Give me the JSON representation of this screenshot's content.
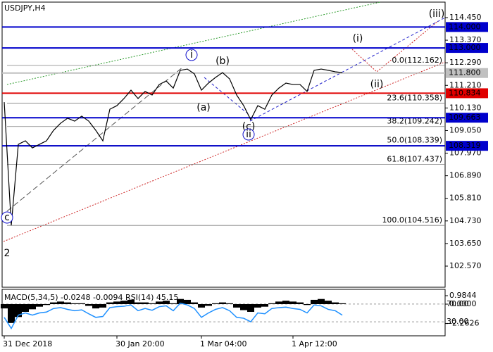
{
  "chart_data": [
    {
      "type": "line",
      "title": "USDJPY,H4",
      "categories": [
        "31 Dec 2018",
        null,
        null,
        null,
        null,
        null,
        null,
        null,
        null,
        null,
        null,
        null,
        null,
        null,
        null,
        null,
        "30 Jan 20:00",
        null,
        null,
        null,
        null,
        null,
        null,
        null,
        null,
        null,
        null,
        null,
        "1 Mar 04:00",
        null,
        null,
        null,
        null,
        null,
        null,
        null,
        null,
        null,
        null,
        null,
        null,
        "1 Apr 12:00",
        null,
        null,
        null,
        null,
        null,
        null,
        null
      ],
      "series": [
        {
          "color": "#000000",
          "values": [
            110.41,
            104.52,
            108.39,
            108.56,
            108.22,
            108.39,
            108.56,
            109.06,
            109.4,
            109.64,
            109.5,
            109.74,
            109.5,
            109.06,
            108.56,
            110.07,
            110.24,
            110.58,
            110.98,
            110.58,
            110.92,
            110.75,
            111.25,
            111.42,
            111.08,
            111.93,
            111.99,
            111.76,
            110.98,
            111.32,
            111.59,
            111.82,
            111.52,
            110.75,
            110.24,
            109.57,
            110.24,
            110.07,
            110.75,
            111.08,
            111.32,
            111.25,
            111.25,
            110.92,
            111.93,
            111.99,
            111.93,
            111.86,
            111.82
          ]
        }
      ],
      "ylim": [
        101.56,
        115.19
      ],
      "yticks": [
        {
          "value": 114.45,
          "label": "114.450"
        },
        {
          "value": 113.37,
          "label": "113.370"
        },
        {
          "value": 112.29,
          "label": "112.290"
        },
        {
          "value": 111.21,
          "label": "111.210"
        },
        {
          "value": 110.13,
          "label": "110.130"
        },
        {
          "value": 109.05,
          "label": "109.050"
        },
        {
          "value": 107.97,
          "label": "107.970"
        },
        {
          "value": 106.89,
          "label": "106.890"
        },
        {
          "value": 105.81,
          "label": "105.810"
        },
        {
          "value": 104.73,
          "label": "104.730"
        },
        {
          "value": 103.65,
          "label": "103.650"
        },
        {
          "value": 102.57,
          "label": "102.570"
        }
      ],
      "levels": [
        {
          "value": 114.0,
          "label": "114.000",
          "color": "#0000cc"
        },
        {
          "value": 113.0,
          "label": "113.000",
          "color": "#0000cc"
        },
        {
          "value": 111.8,
          "label": "111.800",
          "color": "#c0c0c0"
        },
        {
          "value": 110.834,
          "label": "110.834",
          "color": "#e00000"
        },
        {
          "value": 109.663,
          "label": "109.663",
          "color": "#0000cc"
        },
        {
          "value": 108.319,
          "label": "108.319",
          "color": "#0000cc"
        }
      ],
      "fib_levels": [
        {
          "value": 112.162,
          "label": "0.0(112.162)"
        },
        {
          "value": 110.358,
          "label": "23.6(110.358)"
        },
        {
          "value": 109.242,
          "label": "38.2(109.242)"
        },
        {
          "value": 108.339,
          "label": "50.0(108.339)"
        },
        {
          "value": 107.437,
          "label": "61.8(107.437)"
        },
        {
          "value": 104.516,
          "label": "100.0(104.516)"
        }
      ],
      "annotations": [
        {
          "text": "i",
          "color": "#1010cc",
          "circled": true
        },
        {
          "text": "(b)",
          "color": "#e00000"
        },
        {
          "text": "(a)",
          "color": "#e00000"
        },
        {
          "text": "(c)",
          "color": "#e00000"
        },
        {
          "text": "ii",
          "color": "#1010cc",
          "circled": true
        },
        {
          "text": "c",
          "color": "#1010cc",
          "circled": true
        },
        {
          "text": "2",
          "color": "#e00000"
        },
        {
          "text": "(i)",
          "color": "#e00000"
        },
        {
          "text": "(ii)",
          "color": "#e00000"
        },
        {
          "text": "(iii)",
          "color": "#e00000"
        }
      ]
    },
    {
      "type": "bar",
      "title": "MACD(5,34,5) -0.0248 -0.0094 RSI(14) 45.15",
      "series": [
        {
          "color": "#000000",
          "values": [
            -0.5,
            -2.2,
            -1.5,
            -0.9,
            -0.6,
            -0.3,
            -0.1,
            0.2,
            0.3,
            0.2,
            0.1,
            0.1,
            -0.2,
            -0.5,
            -0.4,
            0.2,
            0.3,
            0.4,
            0.5,
            0.2,
            0.2,
            0.1,
            0.3,
            0.4,
            0.1,
            0.6,
            0.5,
            0.2,
            -0.4,
            -0.2,
            0.1,
            0.2,
            0.1,
            -0.4,
            -0.7,
            -0.9,
            -0.4,
            -0.3,
            0.1,
            0.3,
            0.4,
            0.3,
            0.2,
            -0.1,
            0.5,
            0.6,
            0.4,
            0.2,
            0.1
          ]
        },
        {
          "type": "line",
          "axis": "y2",
          "color": "#1e90ff",
          "values": [
            40,
            15,
            45,
            50,
            45,
            50,
            52,
            60,
            62,
            58,
            55,
            57,
            48,
            40,
            42,
            62,
            64,
            65,
            68,
            55,
            60,
            56,
            64,
            66,
            55,
            72,
            68,
            60,
            40,
            50,
            58,
            62,
            55,
            40,
            38,
            30,
            50,
            48,
            60,
            62,
            63,
            60,
            58,
            50,
            68,
            66,
            58,
            55,
            45
          ]
        }
      ],
      "ylim": [
        -3.61,
        1.56
      ],
      "yticks": [
        {
          "value": 0.9844,
          "label": "0.9844"
        },
        {
          "value": 0,
          "label": "0.0000"
        },
        {
          "value": -2.2626,
          "label": "-2.2626"
        }
      ],
      "y2lim": [
        0,
        100
      ],
      "y2ticks": [
        {
          "value": 70,
          "label": "70.00"
        },
        {
          "value": 30,
          "label": "30.00"
        }
      ]
    }
  ]
}
